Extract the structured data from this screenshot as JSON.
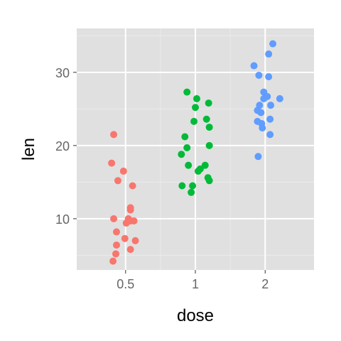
{
  "chart_data": {
    "type": "scatter",
    "title": "",
    "xlabel": "dose",
    "ylabel": "len",
    "x_categories": [
      "0.5",
      "1",
      "2"
    ],
    "xlim": [
      0.3,
      3.7
    ],
    "ylim": [
      3.0,
      36.0
    ],
    "y_ticks": [
      10,
      20,
      30
    ],
    "grid": true,
    "legend": "none",
    "colors": {
      "panel_bg": "#E0E0E0",
      "grid_major": "#FFFFFF",
      "grid_minor": "#EBEBEB",
      "dose_0_5": "#F8766D",
      "dose_1": "#00BA38",
      "dose_2": "#619CFF"
    },
    "series": [
      {
        "category": "0.5",
        "color": "#F8766D",
        "points": [
          {
            "x": 0.83,
            "y": 21.5
          },
          {
            "x": 0.8,
            "y": 17.6
          },
          {
            "x": 0.97,
            "y": 16.5
          },
          {
            "x": 0.89,
            "y": 15.2
          },
          {
            "x": 1.1,
            "y": 14.5
          },
          {
            "x": 1.07,
            "y": 11.5
          },
          {
            "x": 1.07,
            "y": 11.2
          },
          {
            "x": 0.83,
            "y": 10.0
          },
          {
            "x": 1.04,
            "y": 10.0
          },
          {
            "x": 1.07,
            "y": 9.7
          },
          {
            "x": 1.12,
            "y": 9.7
          },
          {
            "x": 1.01,
            "y": 9.4
          },
          {
            "x": 0.87,
            "y": 8.2
          },
          {
            "x": 0.99,
            "y": 7.3
          },
          {
            "x": 1.14,
            "y": 7.0
          },
          {
            "x": 0.87,
            "y": 6.4
          },
          {
            "x": 1.07,
            "y": 5.8
          },
          {
            "x": 0.86,
            "y": 5.2
          },
          {
            "x": 0.82,
            "y": 4.2
          }
        ]
      },
      {
        "category": "1",
        "color": "#00BA38",
        "points": [
          {
            "x": 1.88,
            "y": 27.3
          },
          {
            "x": 2.02,
            "y": 26.4
          },
          {
            "x": 2.19,
            "y": 25.8
          },
          {
            "x": 2.0,
            "y": 25.2
          },
          {
            "x": 2.16,
            "y": 23.6
          },
          {
            "x": 1.98,
            "y": 23.3
          },
          {
            "x": 2.2,
            "y": 22.5
          },
          {
            "x": 1.85,
            "y": 21.2
          },
          {
            "x": 2.2,
            "y": 20.0
          },
          {
            "x": 1.88,
            "y": 19.7
          },
          {
            "x": 1.8,
            "y": 18.8
          },
          {
            "x": 2.14,
            "y": 17.3
          },
          {
            "x": 1.9,
            "y": 17.3
          },
          {
            "x": 2.07,
            "y": 16.8
          },
          {
            "x": 2.04,
            "y": 16.5
          },
          {
            "x": 2.18,
            "y": 15.6
          },
          {
            "x": 2.2,
            "y": 15.2
          },
          {
            "x": 1.81,
            "y": 14.5
          },
          {
            "x": 1.96,
            "y": 14.5
          },
          {
            "x": 1.94,
            "y": 13.6
          }
        ]
      },
      {
        "category": "2",
        "color": "#619CFF",
        "points": [
          {
            "x": 3.11,
            "y": 33.9
          },
          {
            "x": 3.05,
            "y": 32.5
          },
          {
            "x": 2.84,
            "y": 30.9
          },
          {
            "x": 2.91,
            "y": 29.6
          },
          {
            "x": 3.05,
            "y": 29.4
          },
          {
            "x": 2.98,
            "y": 27.3
          },
          {
            "x": 3.03,
            "y": 26.7
          },
          {
            "x": 2.98,
            "y": 26.4
          },
          {
            "x": 3.21,
            "y": 26.4
          },
          {
            "x": 3.08,
            "y": 25.5
          },
          {
            "x": 2.92,
            "y": 25.5
          },
          {
            "x": 2.89,
            "y": 24.8
          },
          {
            "x": 2.94,
            "y": 24.5
          },
          {
            "x": 3.07,
            "y": 23.6
          },
          {
            "x": 2.89,
            "y": 23.3
          },
          {
            "x": 2.95,
            "y": 23.0
          },
          {
            "x": 2.96,
            "y": 22.4
          },
          {
            "x": 3.07,
            "y": 21.5
          },
          {
            "x": 2.9,
            "y": 18.5
          }
        ]
      }
    ]
  }
}
